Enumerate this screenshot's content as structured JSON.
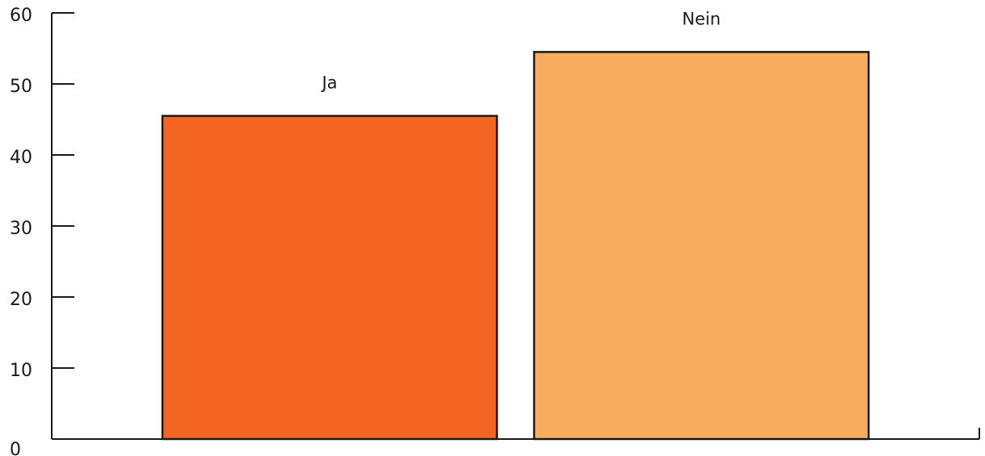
{
  "chart_data": {
    "type": "bar",
    "categories": [
      "Ja",
      "Nein"
    ],
    "values": [
      45.5,
      54.5
    ],
    "colors": [
      "#F26522",
      "#F9AD5E"
    ],
    "ylim": [
      0,
      60
    ],
    "yticks": [
      0,
      10,
      20,
      30,
      40,
      50,
      60
    ],
    "ytick_labels": [
      "0",
      "10",
      "20",
      "30",
      "40",
      "50",
      "60"
    ],
    "data_labels_position": "above-bar",
    "grid": false,
    "legend": "none"
  }
}
